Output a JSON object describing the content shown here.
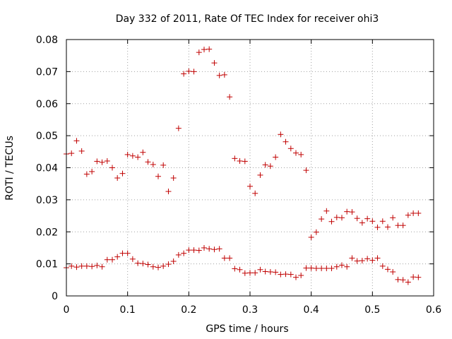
{
  "chart_data": {
    "type": "scatter",
    "title": "Day 332 of 2011, Rate Of TEC Index for receiver ohi3",
    "xlabel": "GPS time / hours",
    "ylabel": "ROTI / TECUs",
    "xlim": [
      0,
      0.6
    ],
    "ylim": [
      0,
      0.08
    ],
    "xticks": [
      "0",
      "0.1",
      "0.2",
      "0.3",
      "0.4",
      "0.5",
      "0.6"
    ],
    "yticks": [
      "0",
      "0.01",
      "0.02",
      "0.03",
      "0.04",
      "0.05",
      "0.06",
      "0.07",
      "0.08"
    ],
    "grid": true,
    "marker": "plus",
    "color": "#c00000",
    "series": [
      {
        "x": [
          0.0,
          0.0083,
          0.0167,
          0.025,
          0.0333,
          0.0417,
          0.05,
          0.0583,
          0.0667,
          0.075,
          0.0833,
          0.0917,
          0.1,
          0.1083,
          0.1167,
          0.125,
          0.1333,
          0.1417,
          0.15,
          0.1583,
          0.1667,
          0.175,
          0.1833,
          0.1917,
          0.2,
          0.2083,
          0.2167,
          0.225,
          0.2333,
          0.2417,
          0.25,
          0.2583,
          0.2667,
          0.275,
          0.2833,
          0.2917,
          0.3,
          0.3083,
          0.3167,
          0.325,
          0.3333,
          0.3417,
          0.35,
          0.3583,
          0.3667,
          0.375,
          0.3833,
          0.3917,
          0.4,
          0.4083,
          0.4167,
          0.425,
          0.4333,
          0.4417,
          0.45,
          0.4583,
          0.4667,
          0.475,
          0.4833,
          0.4917,
          0.5,
          0.5083,
          0.5167,
          0.525,
          0.5333,
          0.5417,
          0.55,
          0.5583,
          0.5667,
          0.575
        ],
        "y": [
          0.0443,
          0.0445,
          0.0484,
          0.0452,
          0.038,
          0.0388,
          0.042,
          0.0417,
          0.0421,
          0.04,
          0.0368,
          0.0382,
          0.0441,
          0.0437,
          0.0433,
          0.0448,
          0.0418,
          0.041,
          0.0373,
          0.0408,
          0.0326,
          0.0368,
          0.0523,
          0.0693,
          0.0701,
          0.07,
          0.076,
          0.0769,
          0.077,
          0.0727,
          0.0688,
          0.069,
          0.0621,
          0.0429,
          0.0421,
          0.042,
          0.0342,
          0.032,
          0.0377,
          0.0409,
          0.0405,
          0.0433,
          0.0504,
          0.0481,
          0.046,
          0.0446,
          0.0441,
          0.0392,
          0.0183,
          0.0199,
          0.024,
          0.0265,
          0.0232,
          0.0245,
          0.0244,
          0.0263,
          0.0262,
          0.0242,
          0.0228,
          0.0241,
          0.0233,
          0.0214,
          0.0233,
          0.0215,
          0.0244,
          0.022,
          0.022,
          0.0252,
          0.0258,
          0.0258
        ]
      },
      {
        "x": [
          0.0,
          0.0083,
          0.0167,
          0.025,
          0.0333,
          0.0417,
          0.05,
          0.0583,
          0.0667,
          0.075,
          0.0833,
          0.0917,
          0.1,
          0.1083,
          0.1167,
          0.125,
          0.1333,
          0.1417,
          0.15,
          0.1583,
          0.1667,
          0.175,
          0.1833,
          0.1917,
          0.2,
          0.2083,
          0.2167,
          0.225,
          0.2333,
          0.2417,
          0.25,
          0.2583,
          0.2667,
          0.275,
          0.2833,
          0.2917,
          0.3,
          0.3083,
          0.3167,
          0.325,
          0.3333,
          0.3417,
          0.35,
          0.3583,
          0.3667,
          0.375,
          0.3833,
          0.3917,
          0.4,
          0.4083,
          0.4167,
          0.425,
          0.4333,
          0.4417,
          0.45,
          0.4583,
          0.4667,
          0.475,
          0.4833,
          0.4917,
          0.5,
          0.5083,
          0.5167,
          0.525,
          0.5333,
          0.5417,
          0.55,
          0.5583,
          0.5667,
          0.575
        ],
        "y": [
          0.0088,
          0.0093,
          0.009,
          0.0093,
          0.0093,
          0.0092,
          0.0095,
          0.0091,
          0.0113,
          0.0113,
          0.0122,
          0.0133,
          0.0133,
          0.0115,
          0.0102,
          0.0101,
          0.0098,
          0.0091,
          0.0089,
          0.0093,
          0.0099,
          0.0108,
          0.0128,
          0.0133,
          0.0143,
          0.0143,
          0.0142,
          0.015,
          0.0147,
          0.0145,
          0.0147,
          0.0118,
          0.0118,
          0.0085,
          0.0082,
          0.0071,
          0.0072,
          0.0072,
          0.0082,
          0.0076,
          0.0075,
          0.0074,
          0.0067,
          0.0068,
          0.0067,
          0.0058,
          0.0064,
          0.0087,
          0.0087,
          0.0086,
          0.0086,
          0.0086,
          0.0086,
          0.0091,
          0.0096,
          0.0091,
          0.0118,
          0.0109,
          0.011,
          0.0116,
          0.0111,
          0.0118,
          0.0093,
          0.0083,
          0.0075,
          0.0051,
          0.005,
          0.0043,
          0.0059,
          0.0058
        ]
      }
    ]
  }
}
